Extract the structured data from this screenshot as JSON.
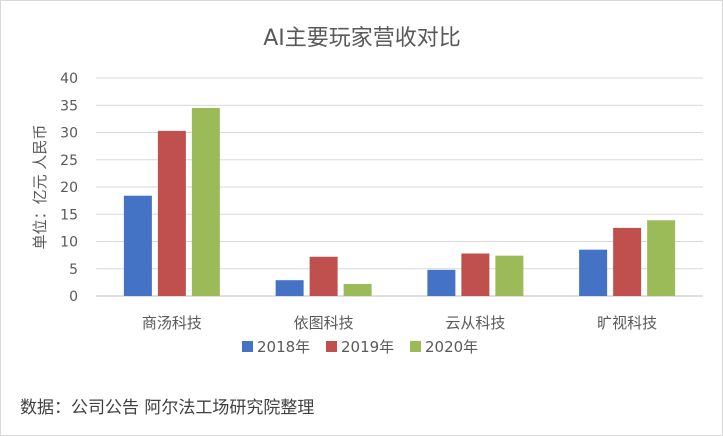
{
  "chart_data": {
    "type": "bar",
    "title": "AI主要玩家营收对比",
    "ylabel": "单位：亿元 人民币",
    "xlabel": "",
    "categories": [
      "商汤科技",
      "依图科技",
      "云从科技",
      "旷视科技"
    ],
    "series": [
      {
        "name": "2018年",
        "color": "#4472C4",
        "values": [
          18.4,
          2.9,
          4.8,
          8.5
        ]
      },
      {
        "name": "2019年",
        "color": "#C0504D",
        "values": [
          30.3,
          7.2,
          7.8,
          12.5
        ]
      },
      {
        "name": "2020年",
        "color": "#9BBB59",
        "values": [
          34.5,
          2.2,
          7.4,
          13.9
        ]
      }
    ],
    "ylim": [
      0,
      40
    ],
    "yticks": [
      0,
      5,
      10,
      15,
      20,
      25,
      30,
      35,
      40
    ],
    "grid": true,
    "legend_position": "bottom"
  },
  "source_note": "数据：公司公告 阿尔法工场研究院整理"
}
